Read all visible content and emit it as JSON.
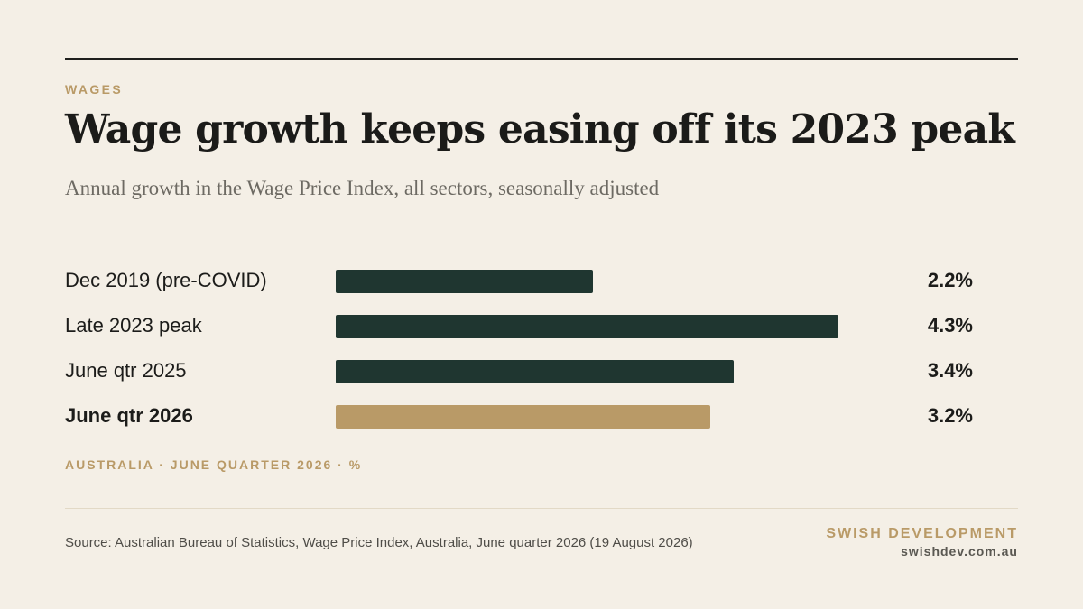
{
  "kicker": "WAGES",
  "title": "Wage growth keeps easing off its 2023 peak",
  "subtitle": "Annual growth in the Wage Price Index, all sectors, seasonally adjusted",
  "footnote": "AUSTRALIA · JUNE QUARTER 2026 · %",
  "source": "Source: Australian Bureau of Statistics, Wage Price Index, Australia, June quarter 2026 (19 August 2026)",
  "brand": {
    "name": "SWISH DEVELOPMENT",
    "url": "swishdev.com.au"
  },
  "colors": {
    "bar": "#1f3630",
    "highlight": "#b99a67",
    "accent": "#b99a67",
    "background": "#f4efe6"
  },
  "chart_data": {
    "type": "bar",
    "orientation": "horizontal",
    "categories": [
      "Dec 2019 (pre-COVID)",
      "Late 2023 peak",
      "June qtr 2025",
      "June qtr 2026"
    ],
    "values": [
      2.2,
      4.3,
      3.4,
      3.2
    ],
    "value_labels": [
      "2.2%",
      "4.3%",
      "3.4%",
      "3.2%"
    ],
    "highlight_index": 3,
    "xlim": [
      0,
      5.0
    ],
    "grid": false,
    "legend": "none"
  }
}
